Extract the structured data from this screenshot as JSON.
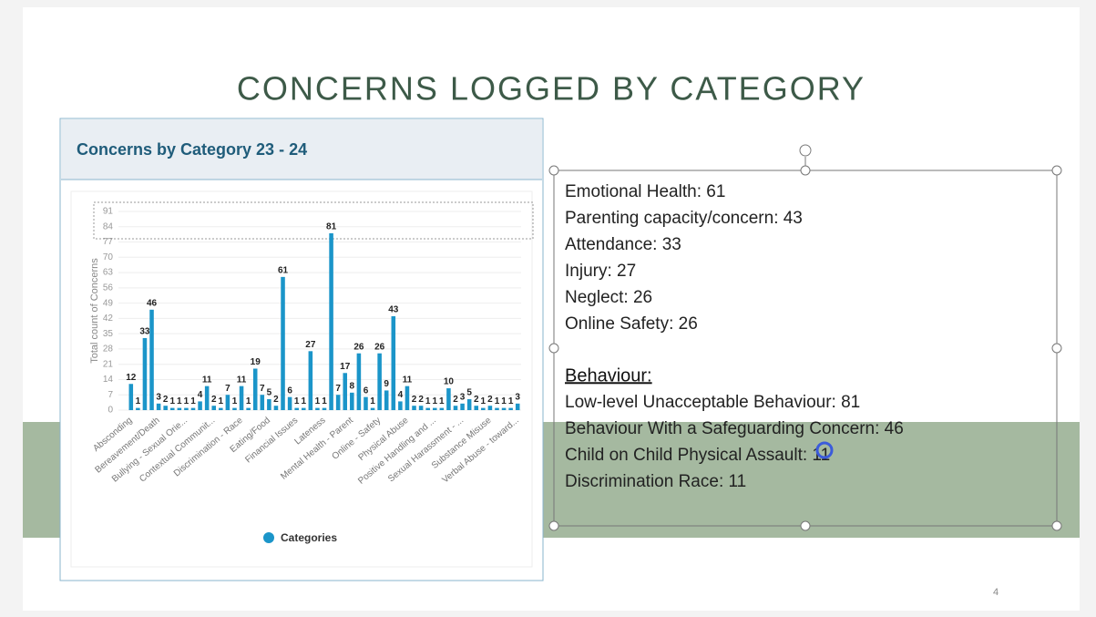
{
  "slide_title": "CONCERNS LOGGED BY CATEGORY",
  "chart_data": {
    "type": "bar",
    "title": "Concerns by Category 23 - 24",
    "y_label": "Total count of Concerns",
    "legend": "Categories",
    "color": "#1b95c9",
    "categories": [
      "Absconding",
      null,
      null,
      null,
      "Bereavement/Death",
      null,
      null,
      null,
      "Bullying - Sexual Orie...",
      null,
      null,
      null,
      "Contextual Communit...",
      null,
      null,
      null,
      "Discrimination - Race",
      null,
      null,
      null,
      "Eating/Food",
      null,
      null,
      null,
      "Financial Issues",
      null,
      null,
      null,
      "Lateness",
      null,
      null,
      null,
      "Mental Health - Parent",
      null,
      null,
      null,
      "Online - Safety",
      null,
      null,
      null,
      "Physical Abuse",
      null,
      null,
      null,
      "Positive Handling and ...",
      null,
      null,
      null,
      "Sexual Harassment - ...",
      null,
      null,
      null,
      "Substance Misuse",
      null,
      null,
      null,
      "Verbal Abuse - toward..."
    ],
    "values": [
      12,
      1,
      33,
      46,
      3,
      2,
      1,
      1,
      1,
      1,
      4,
      11,
      2,
      1,
      7,
      1,
      11,
      1,
      19,
      7,
      5,
      2,
      61,
      6,
      1,
      1,
      27,
      1,
      1,
      81,
      7,
      17,
      8,
      26,
      6,
      1,
      26,
      9,
      43,
      4,
      11,
      2,
      2,
      1,
      1,
      1,
      10,
      2,
      3,
      5,
      2,
      1,
      2,
      1,
      1,
      1,
      3
    ],
    "ylim": [
      0,
      91
    ],
    "yticks": [
      0,
      7,
      14,
      21,
      28,
      35,
      42,
      49,
      56,
      63,
      70,
      77,
      84,
      91
    ],
    "grid": true
  },
  "text_box": {
    "lines": [
      "Emotional Health: 61",
      "Parenting capacity/concern: 43",
      "Attendance: 33",
      "Injury: 27",
      "Neglect: 26",
      "Online Safety: 26"
    ],
    "heading": "Behaviour:",
    "behaviour_lines": [
      "Low-level Unacceptable Behaviour: 81",
      "Behaviour With a Safeguarding Concern: 46",
      "Child on Child Physical Assault: 11",
      "Discrimination Race: 11"
    ]
  },
  "page_number": "4"
}
